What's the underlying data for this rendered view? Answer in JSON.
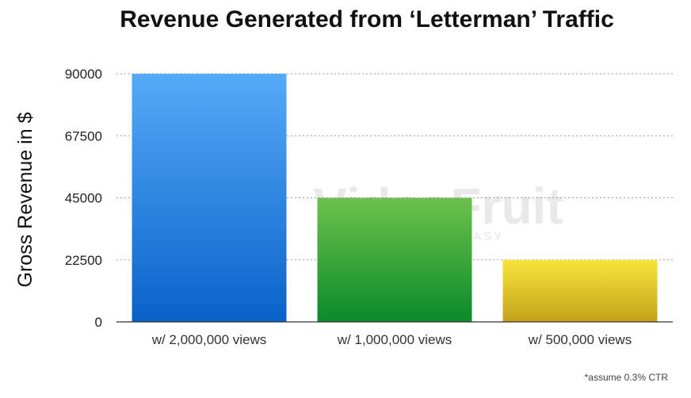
{
  "chart_data": {
    "type": "bar",
    "title": "Revenue Generated from ‘Letterman’ Traffic",
    "xlabel": "",
    "ylabel": "Gross Revenue in $",
    "categories": [
      "w/ 2,000,000 views",
      "w/ 1,000,000 views",
      "w/ 500,000 views"
    ],
    "values": [
      90000,
      45000,
      22500
    ],
    "ylim": [
      0,
      90000
    ],
    "yticks": [
      "0",
      "22500",
      "45000",
      "67500",
      "90000"
    ],
    "grid": true,
    "legend": "none",
    "bar_colors": [
      {
        "top": "#55aaf7",
        "bottom": "#0a62c9"
      },
      {
        "top": "#6cc24a",
        "bottom": "#0a8a2a"
      },
      {
        "top": "#f7e43a",
        "bottom": "#c4a21c"
      }
    ]
  },
  "footnote": "*assume 0.3% CTR",
  "watermark": {
    "brand": "VideoFruit",
    "tagline": "A... MADE EASY"
  }
}
